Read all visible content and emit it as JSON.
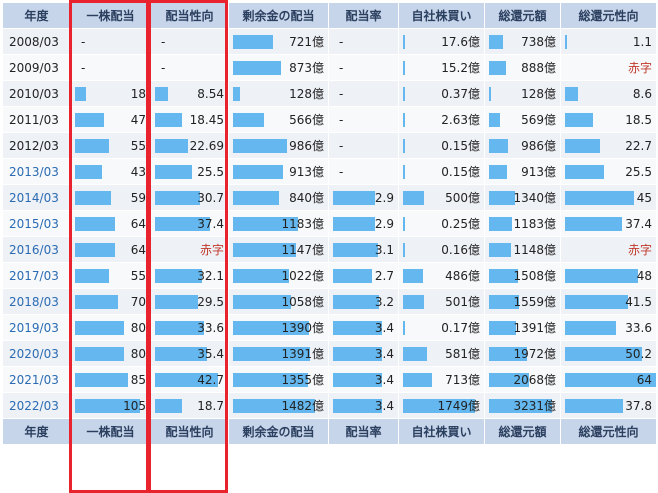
{
  "headers": [
    "年度",
    "一株配当",
    "配当性向",
    "剰余金の配当",
    "配当率",
    "自社株買い",
    "総還元額",
    "総還元性向"
  ],
  "colors": {
    "header_bg": "#c6d5ea",
    "bar": "#64b8ef",
    "highlight": "#e8232d",
    "negative_text": "#c0392b",
    "link": "#2a6bb3"
  },
  "scales": [
    0,
    110,
    45,
    1600,
    4,
    1800,
    3300,
    55
  ],
  "rows": [
    {
      "year": "2008/03",
      "link": false,
      "cells": [
        "-",
        "-",
        "721億",
        "-",
        "17.6億",
        "738億",
        "1.1"
      ],
      "vals": [
        null,
        null,
        721,
        null,
        17.6,
        738,
        1.1
      ]
    },
    {
      "year": "2009/03",
      "link": false,
      "cells": [
        "-",
        "-",
        "873億",
        "-",
        "15.2億",
        "888億",
        "赤字"
      ],
      "vals": [
        null,
        null,
        873,
        null,
        15.2,
        888,
        null
      ]
    },
    {
      "year": "2010/03",
      "link": false,
      "cells": [
        "18",
        "8.54",
        "128億",
        "-",
        "0.37億",
        "128億",
        "8.6"
      ],
      "vals": [
        18,
        8.54,
        128,
        null,
        0.37,
        128,
        8.6
      ]
    },
    {
      "year": "2011/03",
      "link": false,
      "cells": [
        "47",
        "18.45",
        "566億",
        "-",
        "2.63億",
        "569億",
        "18.5"
      ],
      "vals": [
        47,
        18.45,
        566,
        null,
        2.63,
        569,
        18.5
      ]
    },
    {
      "year": "2012/03",
      "link": false,
      "cells": [
        "55",
        "22.69",
        "986億",
        "-",
        "0.15億",
        "986億",
        "22.7"
      ],
      "vals": [
        55,
        22.69,
        986,
        null,
        0.15,
        986,
        22.7
      ]
    },
    {
      "year": "2013/03",
      "link": true,
      "cells": [
        "43",
        "25.5",
        "913億",
        "-",
        "0.15億",
        "913億",
        "25.5"
      ],
      "vals": [
        43,
        25.5,
        913,
        null,
        0.15,
        913,
        25.5
      ]
    },
    {
      "year": "2014/03",
      "link": true,
      "cells": [
        "59",
        "30.7",
        "840億",
        "2.9",
        "500億",
        "1340億",
        "45"
      ],
      "vals": [
        59,
        30.7,
        840,
        2.9,
        500,
        1340,
        45
      ]
    },
    {
      "year": "2015/03",
      "link": true,
      "cells": [
        "64",
        "37.4",
        "1183億",
        "2.9",
        "0.25億",
        "1183億",
        "37.4"
      ],
      "vals": [
        64,
        37.4,
        1183,
        2.9,
        0.25,
        1183,
        37.4
      ]
    },
    {
      "year": "2016/03",
      "link": true,
      "cells": [
        "64",
        "赤字",
        "1147億",
        "3.1",
        "0.16億",
        "1148億",
        "赤字"
      ],
      "vals": [
        64,
        null,
        1147,
        3.1,
        0.16,
        1148,
        null
      ]
    },
    {
      "year": "2017/03",
      "link": true,
      "cells": [
        "55",
        "32.1",
        "1022億",
        "2.7",
        "486億",
        "1508億",
        "48"
      ],
      "vals": [
        55,
        32.1,
        1022,
        2.7,
        486,
        1508,
        48
      ]
    },
    {
      "year": "2018/03",
      "link": true,
      "cells": [
        "70",
        "29.5",
        "1058億",
        "3.2",
        "501億",
        "1559億",
        "41.5"
      ],
      "vals": [
        70,
        29.5,
        1058,
        3.2,
        501,
        1559,
        41.5
      ]
    },
    {
      "year": "2019/03",
      "link": true,
      "cells": [
        "80",
        "33.6",
        "1390億",
        "3.4",
        "0.17億",
        "1391億",
        "33.6"
      ],
      "vals": [
        80,
        33.6,
        1390,
        3.4,
        0.17,
        1391,
        33.6
      ]
    },
    {
      "year": "2020/03",
      "link": true,
      "cells": [
        "80",
        "35.4",
        "1391億",
        "3.4",
        "581億",
        "1972億",
        "50.2"
      ],
      "vals": [
        80,
        35.4,
        1391,
        3.4,
        581,
        1972,
        50.2
      ]
    },
    {
      "year": "2021/03",
      "link": true,
      "cells": [
        "85",
        "42.7",
        "1355億",
        "3.4",
        "713億",
        "2068億",
        "64"
      ],
      "vals": [
        85,
        42.7,
        1355,
        3.4,
        713,
        2068,
        64
      ]
    },
    {
      "year": "2022/03",
      "link": true,
      "cells": [
        "105",
        "18.7",
        "1482億",
        "3.4",
        "1749億",
        "3231億",
        "37.8"
      ],
      "vals": [
        105,
        18.7,
        1482,
        3.4,
        1749,
        3231,
        37.8
      ]
    }
  ]
}
